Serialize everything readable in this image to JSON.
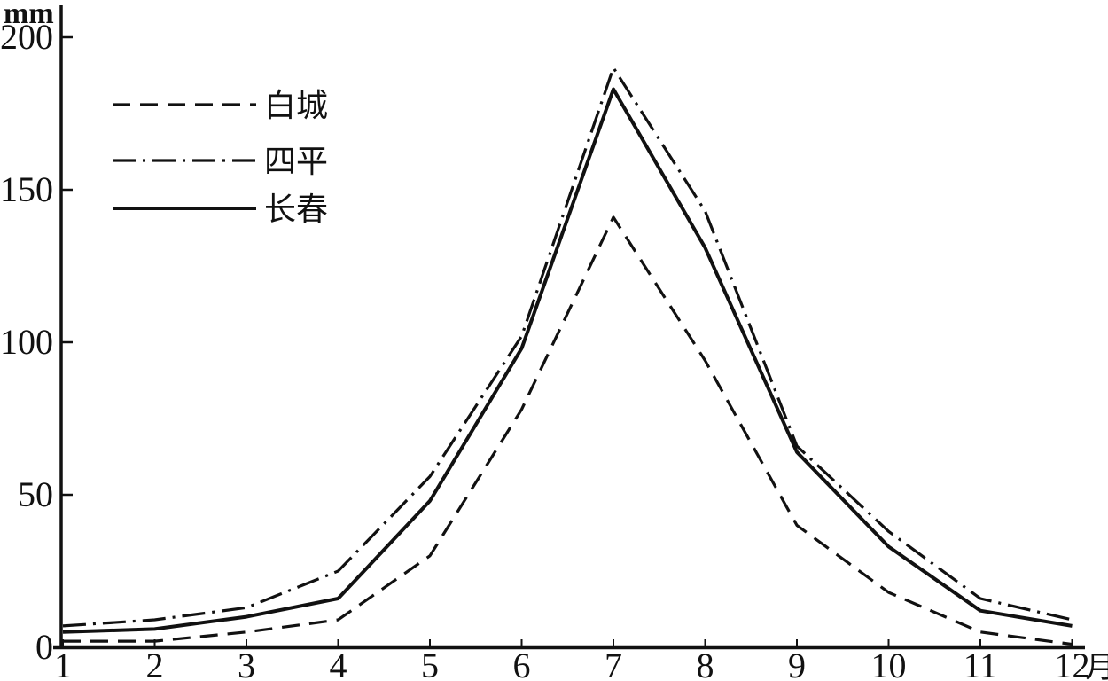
{
  "axis": {
    "unit_label": "mm",
    "x_suffix": "月",
    "y_ticks": [
      0,
      50,
      100,
      150,
      200
    ],
    "x_ticks": [
      "1",
      "2",
      "3",
      "4",
      "5",
      "6",
      "7",
      "8",
      "9",
      "10",
      "11",
      "12"
    ]
  },
  "legend": {
    "items": [
      {
        "id": "baicheng",
        "label": "白城",
        "style": "dashed"
      },
      {
        "id": "siping",
        "label": "四平",
        "style": "dashdot"
      },
      {
        "id": "changchun",
        "label": "长春",
        "style": "solid"
      }
    ]
  },
  "colors": {
    "line": "#111111",
    "background": "#ffffff"
  },
  "chart_data": {
    "type": "line",
    "title": "",
    "xlabel": "月 (month 1-12)",
    "ylabel": "mm",
    "xlim": [
      1,
      12
    ],
    "ylim": [
      0,
      200
    ],
    "grid": false,
    "legend_position": "upper-left",
    "x": [
      1,
      2,
      3,
      4,
      5,
      6,
      7,
      8,
      9,
      10,
      11,
      12
    ],
    "series": [
      {
        "id": "baicheng",
        "name": "白城",
        "style": "dashed",
        "values": [
          2,
          2,
          5,
          9,
          30,
          78,
          141,
          94,
          40,
          18,
          5,
          1
        ]
      },
      {
        "id": "siping",
        "name": "四平",
        "style": "dashdot",
        "values": [
          7,
          9,
          13,
          25,
          56,
          102,
          190,
          143,
          66,
          38,
          16,
          9
        ]
      },
      {
        "id": "changchun",
        "name": "长春",
        "style": "solid",
        "values": [
          5,
          6,
          10,
          16,
          48,
          98,
          183,
          131,
          64,
          33,
          12,
          7
        ]
      }
    ]
  }
}
